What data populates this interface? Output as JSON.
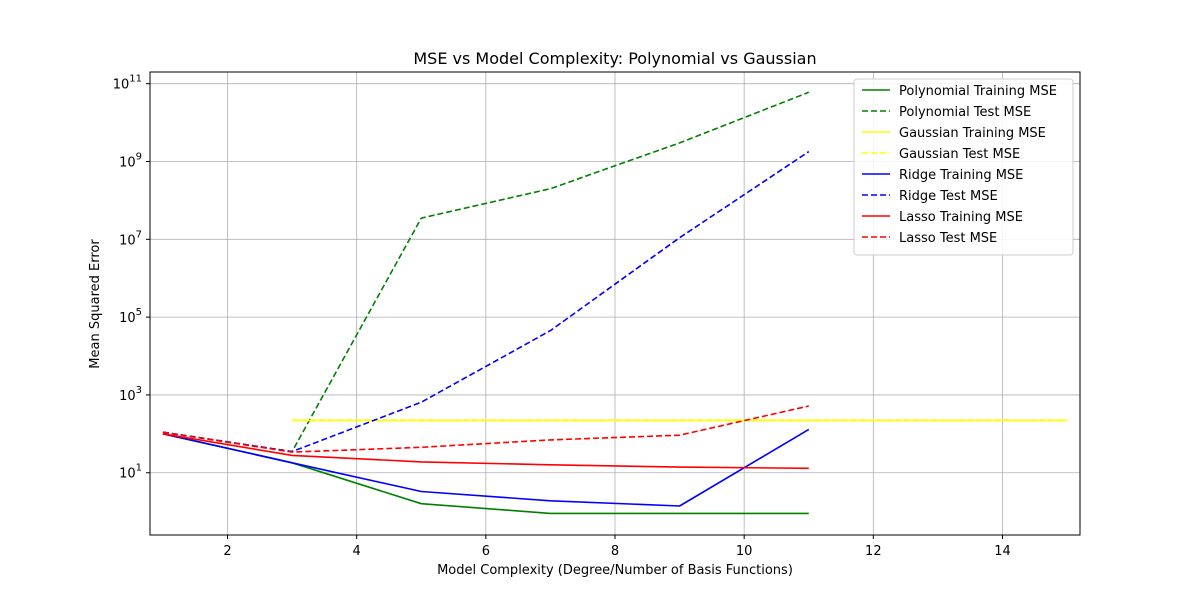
{
  "chart_data": {
    "type": "line",
    "title": "MSE vs Model Complexity: Polynomial vs Gaussian",
    "xlabel": "Model Complexity (Degree/Number of Basis Functions)",
    "ylabel": "Mean Squared Error",
    "yscale": "log",
    "xlim": [
      0.8,
      15.2
    ],
    "ylim_log10": [
      -0.6,
      11.3
    ],
    "grid": true,
    "legend_position": "top-right",
    "x_ticks": [
      2,
      4,
      6,
      8,
      10,
      12,
      14
    ],
    "y_ticks": [
      {
        "exp": 1,
        "base": "10",
        "sup": "1"
      },
      {
        "exp": 3,
        "base": "10",
        "sup": "3"
      },
      {
        "exp": 5,
        "base": "10",
        "sup": "5"
      },
      {
        "exp": 7,
        "base": "10",
        "sup": "7"
      },
      {
        "exp": 9,
        "base": "10",
        "sup": "9"
      },
      {
        "exp": 11,
        "base": "10",
        "sup": "11"
      }
    ],
    "series": [
      {
        "name": "Polynomial Training MSE",
        "color": "#008000",
        "dash": false,
        "x": [
          1,
          3,
          5,
          7,
          9,
          11
        ],
        "y": [
          100,
          18,
          1.6,
          0.9,
          0.9,
          0.9
        ]
      },
      {
        "name": "Polynomial Test MSE",
        "color": "#008000",
        "dash": true,
        "x": [
          1,
          3,
          5,
          7,
          9,
          11
        ],
        "y": [
          110,
          35,
          35000000,
          200000000,
          3000000000,
          60000000000
        ]
      },
      {
        "name": "Gaussian Training MSE",
        "color": "#ffff00",
        "dash": false,
        "x": [
          3,
          5,
          7,
          9,
          11,
          13,
          15
        ],
        "y": [
          220,
          220,
          220,
          220,
          220,
          220,
          220
        ]
      },
      {
        "name": "Gaussian Test MSE",
        "color": "#ffff00",
        "dash": true,
        "x": [
          3,
          5,
          7,
          9,
          11,
          13,
          15
        ],
        "y": [
          225,
          225,
          225,
          225,
          225,
          225,
          225
        ]
      },
      {
        "name": "Ridge Training MSE",
        "color": "#0000ff",
        "dash": false,
        "x": [
          1,
          3,
          5,
          7,
          9,
          11
        ],
        "y": [
          100,
          18,
          3.3,
          1.9,
          1.4,
          130
        ]
      },
      {
        "name": "Ridge Test MSE",
        "color": "#0000ff",
        "dash": true,
        "x": [
          1,
          3,
          5,
          7,
          9,
          11
        ],
        "y": [
          110,
          35,
          650,
          45000,
          11000000,
          1800000000
        ]
      },
      {
        "name": "Lasso Training MSE",
        "color": "#ff0000",
        "dash": false,
        "x": [
          1,
          3,
          5,
          7,
          9,
          11
        ],
        "y": [
          100,
          28,
          19,
          16,
          14,
          13
        ]
      },
      {
        "name": "Lasso Test MSE",
        "color": "#ff0000",
        "dash": true,
        "x": [
          1,
          3,
          5,
          7,
          9,
          11
        ],
        "y": [
          110,
          34,
          45,
          70,
          92,
          520
        ]
      }
    ]
  }
}
